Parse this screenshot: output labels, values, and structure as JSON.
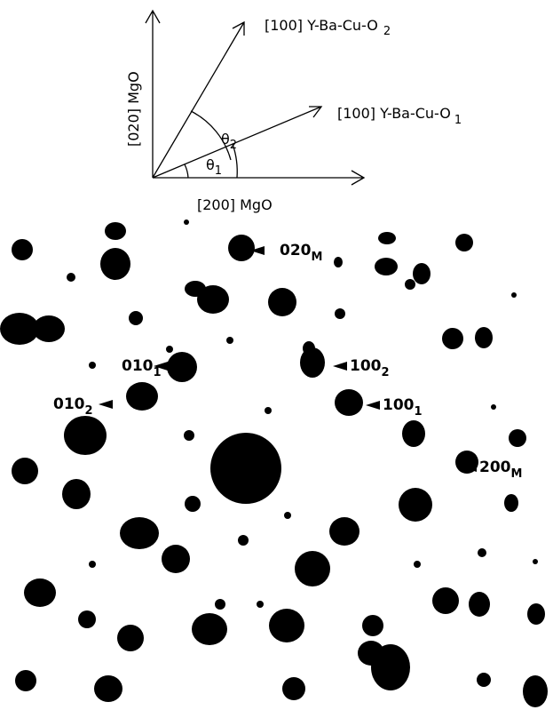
{
  "diagram": {
    "axis_vertical": "[020] MgO",
    "axis_horizontal": "[200] MgO",
    "direction_2": {
      "text": "[100] Y-Ba-Cu-O",
      "sub": "2"
    },
    "direction_1": {
      "text": "[100] Y-Ba-Cu-O",
      "sub": "1"
    },
    "angle_2": {
      "text": "θ",
      "sub": "2"
    },
    "angle_1": {
      "text": "θ",
      "sub": "1"
    }
  },
  "pattern": {
    "labels": [
      {
        "text": "020",
        "sub": "M"
      },
      {
        "text": "010",
        "sub": "1"
      },
      {
        "text": "010",
        "sub": "2"
      },
      {
        "text": "100",
        "sub": "2"
      },
      {
        "text": "100",
        "sub": "1"
      },
      {
        "text": "200",
        "sub": "M"
      }
    ]
  }
}
